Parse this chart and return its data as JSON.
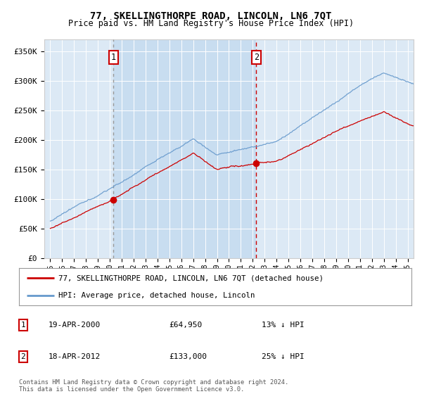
{
  "title": "77, SKELLINGTHORPE ROAD, LINCOLN, LN6 7QT",
  "subtitle": "Price paid vs. HM Land Registry's House Price Index (HPI)",
  "ylabel_ticks": [
    "£0",
    "£50K",
    "£100K",
    "£150K",
    "£200K",
    "£250K",
    "£300K",
    "£350K"
  ],
  "ytick_values": [
    0,
    50000,
    100000,
    150000,
    200000,
    250000,
    300000,
    350000
  ],
  "ylim": [
    0,
    370000
  ],
  "xlim_start": 1994.5,
  "xlim_end": 2025.5,
  "background_color": "#dce9f5",
  "plot_bg_color": "#dce9f5",
  "sale1": {
    "date_year": 2000.29,
    "price": 64950,
    "label": "1",
    "vline_color": "#aaaaaa",
    "vline_style": "dotted"
  },
  "sale2": {
    "date_year": 2012.29,
    "price": 133000,
    "label": "2",
    "vline_color": "#cc0000",
    "vline_style": "dashed"
  },
  "shade_color": "#c8ddf0",
  "hpi_color": "#6699cc",
  "price_color": "#cc0000",
  "legend_entries": [
    "77, SKELLINGTHORPE ROAD, LINCOLN, LN6 7QT (detached house)",
    "HPI: Average price, detached house, Lincoln"
  ],
  "footer_text": "Contains HM Land Registry data © Crown copyright and database right 2024.\nThis data is licensed under the Open Government Licence v3.0.",
  "table_rows": [
    {
      "num": "1",
      "date": "19-APR-2000",
      "price": "£64,950",
      "hpi_diff": "13% ↓ HPI"
    },
    {
      "num": "2",
      "date": "18-APR-2012",
      "price": "£133,000",
      "hpi_diff": "25% ↓ HPI"
    }
  ]
}
